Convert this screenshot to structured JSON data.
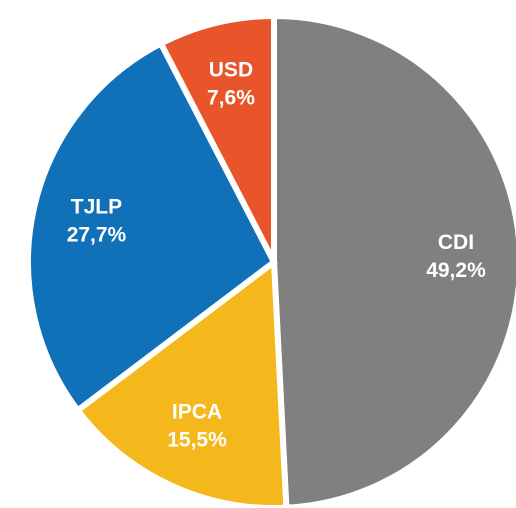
{
  "chart_data": {
    "type": "pie",
    "categories": [
      "CDI",
      "IPCA",
      "TJLP",
      "USD"
    ],
    "values": [
      49.2,
      15.5,
      27.7,
      7.6
    ],
    "value_labels": [
      "49,2%",
      "15,5%",
      "27,7%",
      "7,6%"
    ],
    "colors": [
      "#808080",
      "#f4b81c",
      "#1070b8",
      "#e8552a"
    ]
  }
}
